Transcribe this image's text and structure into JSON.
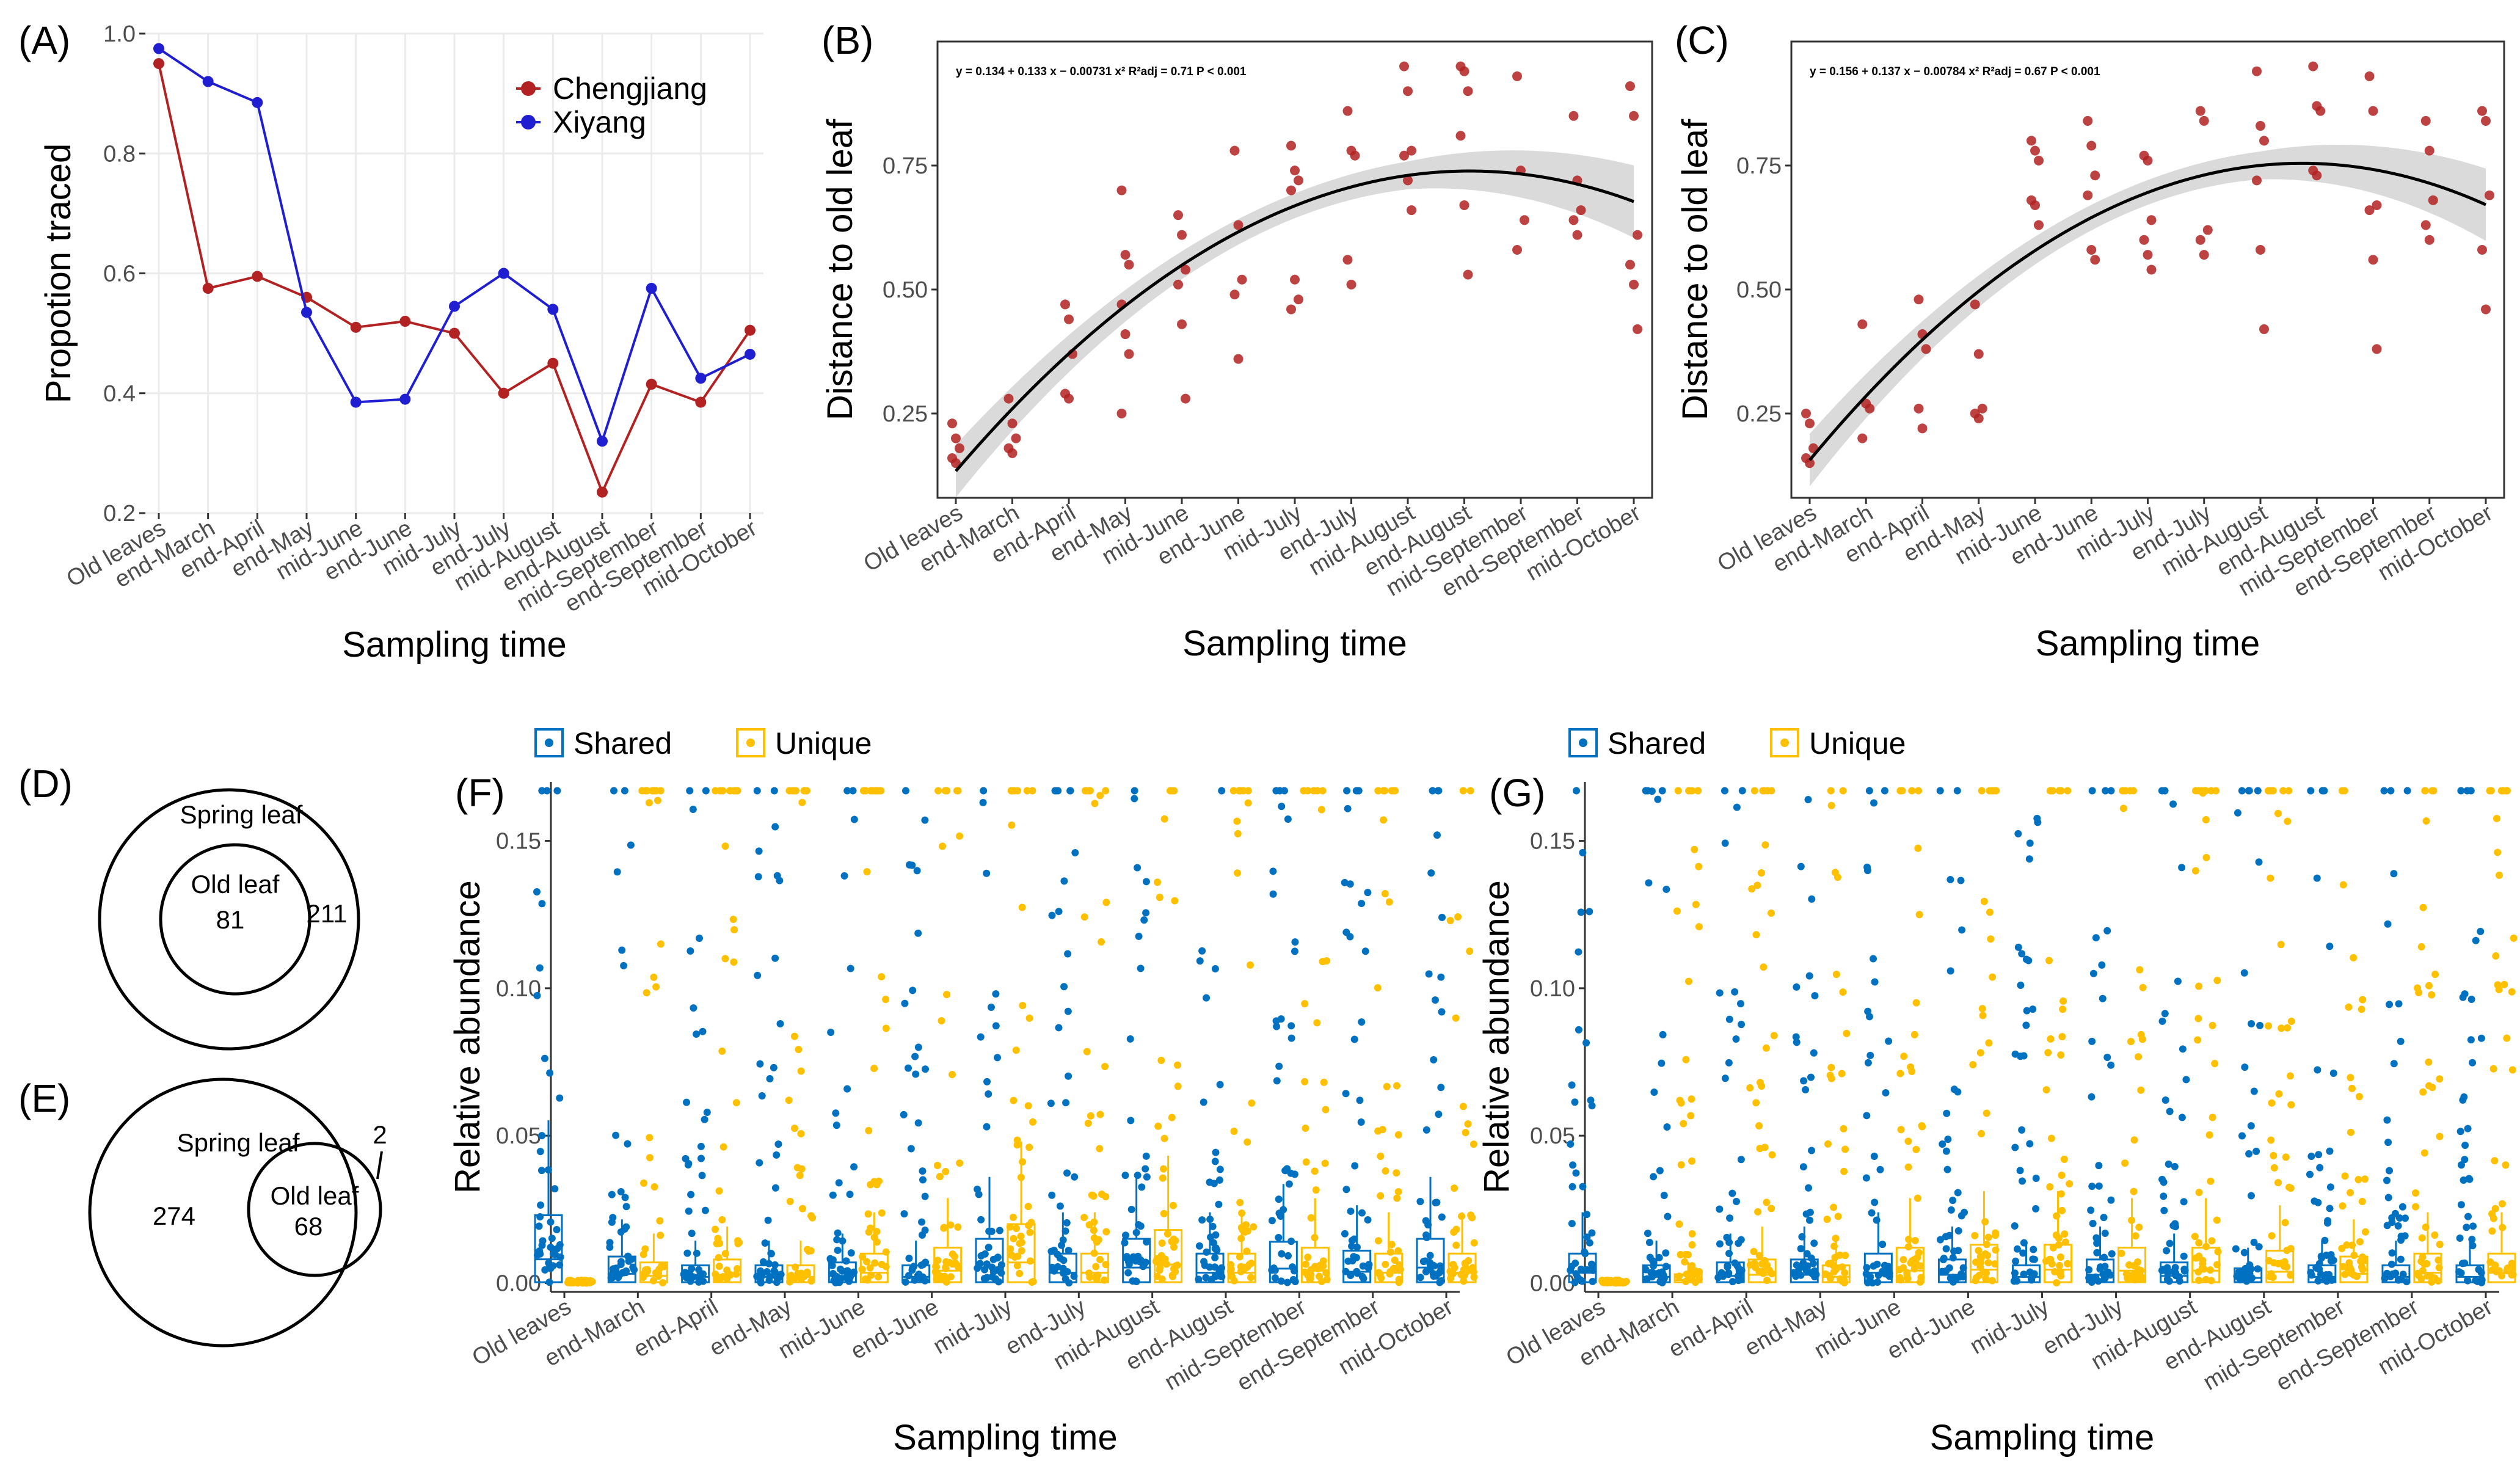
{
  "figure": {
    "panels": [
      "(A)",
      "(B)",
      "(C)",
      "(D)",
      "(E)",
      "(F)",
      "(G)"
    ]
  },
  "colors": {
    "chengjiang": "#b22222",
    "xiyang": "#1f1fd1",
    "points": "#b22222",
    "shared": "#0070c0",
    "unique": "#ffc000",
    "ribbon": "#d3d3d3",
    "grid": "#ebebeb"
  },
  "chart_data": [
    {
      "id": "A",
      "type": "line",
      "categories": [
        "Old leaves",
        "end-March",
        "end-April",
        "end-May",
        "mid-June",
        "end-June",
        "mid-July",
        "end-July",
        "mid-August",
        "end-August",
        "mid-September",
        "end-September",
        "mid-October"
      ],
      "series": [
        {
          "name": "Chengjiang",
          "values": [
            0.95,
            0.575,
            0.595,
            0.56,
            0.51,
            0.52,
            0.5,
            0.4,
            0.45,
            0.235,
            0.415,
            0.385,
            0.505
          ]
        },
        {
          "name": "Xiyang",
          "values": [
            0.975,
            0.92,
            0.885,
            0.535,
            0.385,
            0.39,
            0.545,
            0.6,
            0.54,
            0.32,
            0.575,
            0.425,
            0.465
          ]
        }
      ],
      "ylim": [
        0.2,
        1.0
      ],
      "yticks": [
        "0.2",
        "0.4",
        "0.6",
        "0.8",
        "1.0"
      ],
      "xlabel": "Sampling time",
      "ylabel": "Propotion traced",
      "legend": "top-right"
    },
    {
      "id": "B",
      "type": "scatter",
      "categories": [
        "Old leaves",
        "end-March",
        "end-April",
        "end-May",
        "mid-June",
        "end-June",
        "mid-July",
        "end-July",
        "mid-August",
        "end-August",
        "mid-September",
        "end-September",
        "mid-October"
      ],
      "points": [
        [
          0.23,
          0.2,
          0.18,
          0.16,
          0.15
        ],
        [
          0.28,
          0.23,
          0.2,
          0.18,
          0.17
        ],
        [
          0.47,
          0.44,
          0.37,
          0.29,
          0.28
        ],
        [
          0.7,
          0.57,
          0.55,
          0.47,
          0.41,
          0.37,
          0.25
        ],
        [
          0.65,
          0.61,
          0.54,
          0.51,
          0.43,
          0.28
        ],
        [
          0.78,
          0.63,
          0.52,
          0.49,
          0.36
        ],
        [
          0.79,
          0.74,
          0.72,
          0.7,
          0.52,
          0.48,
          0.46
        ],
        [
          0.86,
          0.78,
          0.77,
          0.56,
          0.51
        ],
        [
          0.95,
          0.9,
          0.78,
          0.77,
          0.72,
          0.66
        ],
        [
          0.95,
          0.94,
          0.9,
          0.81,
          0.67,
          0.53
        ],
        [
          0.93,
          0.74,
          0.64,
          0.58
        ],
        [
          0.85,
          0.72,
          0.66,
          0.64,
          0.61
        ],
        [
          0.91,
          0.85,
          0.61,
          0.55,
          0.51,
          0.42
        ]
      ],
      "fit": {
        "intercept": 0.134,
        "b1": 0.133,
        "b2": -0.00731
      },
      "equation": "y = 0.134 + 0.133 x − 0.00731 x²   R²adj = 0.71   P < 0.001",
      "ylim": [
        0.08,
        1.0
      ],
      "yticks": [
        "0.25",
        "0.50",
        "0.75"
      ],
      "xlabel": "Sampling time",
      "ylabel": "Distance to old leaf"
    },
    {
      "id": "C",
      "type": "scatter",
      "categories": [
        "Old leaves",
        "end-March",
        "end-April",
        "end-May",
        "mid-June",
        "end-June",
        "mid-July",
        "end-July",
        "mid-August",
        "end-August",
        "mid-September",
        "end-September",
        "mid-October"
      ],
      "points": [
        [
          0.25,
          0.23,
          0.18,
          0.16,
          0.15
        ],
        [
          0.43,
          0.27,
          0.26,
          0.2
        ],
        [
          0.48,
          0.41,
          0.38,
          0.26,
          0.22
        ],
        [
          0.47,
          0.37,
          0.26,
          0.25,
          0.24
        ],
        [
          0.8,
          0.78,
          0.76,
          0.68,
          0.67,
          0.63
        ],
        [
          0.84,
          0.79,
          0.73,
          0.69,
          0.58,
          0.56
        ],
        [
          0.77,
          0.76,
          0.64,
          0.6,
          0.57,
          0.54
        ],
        [
          0.86,
          0.84,
          0.62,
          0.6,
          0.57
        ],
        [
          0.94,
          0.83,
          0.8,
          0.72,
          0.58,
          0.42
        ],
        [
          0.95,
          0.87,
          0.86,
          0.74,
          0.73
        ],
        [
          0.93,
          0.86,
          0.67,
          0.66,
          0.56,
          0.38
        ],
        [
          0.84,
          0.78,
          0.68,
          0.63,
          0.6
        ],
        [
          0.86,
          0.84,
          0.69,
          0.58,
          0.46
        ]
      ],
      "fit": {
        "intercept": 0.156,
        "b1": 0.137,
        "b2": -0.00784
      },
      "equation": "y = 0.156 + 0.137 x − 0.00784 x²   R²adj = 0.67   P < 0.001",
      "ylim": [
        0.08,
        1.0
      ],
      "yticks": [
        "0.25",
        "0.50",
        "0.75"
      ],
      "xlabel": "Sampling time",
      "ylabel": "Distance to old leaf"
    },
    {
      "id": "F",
      "type": "box",
      "categories": [
        "Old leaves",
        "end-March",
        "end-April",
        "end-May",
        "mid-June",
        "end-June",
        "mid-July",
        "end-July",
        "mid-August",
        "end-August",
        "mid-September",
        "end-September",
        "mid-October"
      ],
      "series": [
        {
          "name": "Shared",
          "q3": [
            0.023,
            0.009,
            0.006,
            0.006,
            0.007,
            0.006,
            0.015,
            0.01,
            0.015,
            0.01,
            0.014,
            0.011,
            0.015
          ]
        },
        {
          "name": "Unique",
          "q3": [
            0.0005,
            0.007,
            0.008,
            0.006,
            0.01,
            0.012,
            0.02,
            0.01,
            0.018,
            0.01,
            0.012,
            0.01,
            0.01
          ]
        }
      ],
      "ylim": [
        -0.003,
        0.17
      ],
      "yticks": [
        "0.00",
        "0.05",
        "0.10",
        "0.15"
      ],
      "xlabel": "Sampling time",
      "ylabel": "Relative abundance",
      "legend": "top"
    },
    {
      "id": "G",
      "type": "box",
      "categories": [
        "Old leaves",
        "end-March",
        "end-April",
        "end-May",
        "mid-June",
        "end-June",
        "mid-July",
        "end-July",
        "mid-August",
        "end-August",
        "mid-September",
        "end-September",
        "mid-October"
      ],
      "series": [
        {
          "name": "Shared",
          "q3": [
            0.01,
            0.006,
            0.007,
            0.008,
            0.01,
            0.008,
            0.006,
            0.008,
            0.007,
            0.005,
            0.006,
            0.006,
            0.006
          ]
        },
        {
          "name": "Unique",
          "q3": [
            0.0005,
            0.003,
            0.008,
            0.006,
            0.012,
            0.013,
            0.013,
            0.012,
            0.012,
            0.011,
            0.009,
            0.01,
            0.01
          ]
        }
      ],
      "ylim": [
        -0.003,
        0.17
      ],
      "yticks": [
        "0.00",
        "0.05",
        "0.10",
        "0.15"
      ],
      "xlabel": "Sampling time",
      "ylabel": "Relative abundance",
      "legend": "top"
    }
  ],
  "venn": {
    "D": {
      "outer": "Spring leaf",
      "inner": "Old leaf",
      "inner_count": "81",
      "outer_count": "211"
    },
    "E": {
      "outer": "Spring leaf",
      "inner": "Old leaf",
      "inner_count": "68",
      "outer_count": "274",
      "outside_count": "2"
    }
  }
}
